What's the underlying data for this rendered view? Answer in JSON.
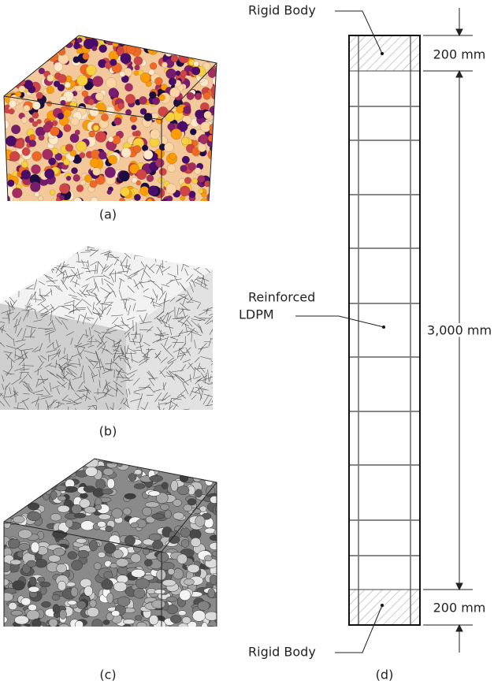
{
  "panels": [
    {
      "label": "(a)"
    },
    {
      "label": "(b)"
    },
    {
      "label": "(c)"
    },
    {
      "label": "(d)"
    }
  ],
  "diagram": {
    "top_label": "Rigid Body",
    "bottom_label": "Rigid Body",
    "middle_label": [
      "Reinforced",
      "LDPM"
    ],
    "dimensions": [
      "200 mm",
      "3,000 mm",
      "200 mm"
    ]
  }
}
